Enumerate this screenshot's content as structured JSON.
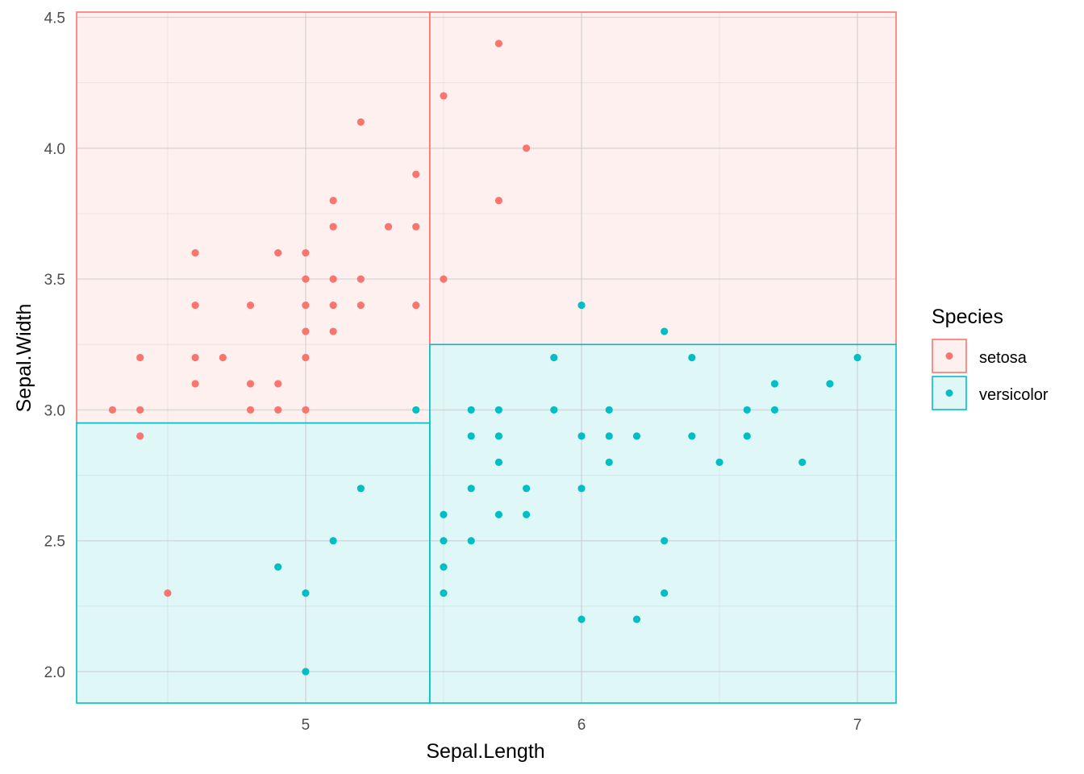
{
  "chart_data": {
    "type": "scatter",
    "title": "",
    "xlabel": "Sepal.Length",
    "ylabel": "Sepal.Width",
    "xlim": [
      4.17,
      7.14
    ],
    "ylim": [
      1.88,
      4.52
    ],
    "x_ticks": [
      5,
      6,
      7
    ],
    "x_tick_labels": [
      "5",
      "6",
      "7"
    ],
    "y_ticks": [
      2.0,
      2.5,
      3.0,
      3.5,
      4.0,
      4.5
    ],
    "y_tick_labels": [
      "2.0",
      "2.5",
      "3.0",
      "3.5",
      "4.0",
      "4.5"
    ],
    "grid": true,
    "legend": {
      "title": "Species",
      "position": "right",
      "entries": [
        "setosa",
        "versicolor"
      ]
    },
    "colors": {
      "setosa": "#F8766D",
      "versicolor": "#00BFC4"
    },
    "regions": [
      {
        "class": "setosa",
        "xmin": 4.17,
        "xmax": 5.45,
        "ymin": 2.95,
        "ymax": 4.52
      },
      {
        "class": "setosa",
        "xmin": 5.45,
        "xmax": 7.14,
        "ymin": 3.25,
        "ymax": 4.52
      },
      {
        "class": "versicolor",
        "xmin": 4.17,
        "xmax": 5.45,
        "ymin": 1.88,
        "ymax": 2.95
      },
      {
        "class": "versicolor",
        "xmin": 5.45,
        "xmax": 7.14,
        "ymin": 1.88,
        "ymax": 3.25
      }
    ],
    "series": [
      {
        "name": "setosa",
        "points": [
          [
            4.3,
            3.0
          ],
          [
            4.4,
            3.2
          ],
          [
            4.4,
            3.0
          ],
          [
            4.4,
            2.9
          ],
          [
            4.5,
            2.3
          ],
          [
            4.6,
            3.6
          ],
          [
            4.6,
            3.4
          ],
          [
            4.6,
            3.2
          ],
          [
            4.6,
            3.1
          ],
          [
            4.7,
            3.2
          ],
          [
            4.8,
            3.4
          ],
          [
            4.8,
            3.1
          ],
          [
            4.8,
            3.0
          ],
          [
            4.9,
            3.6
          ],
          [
            4.9,
            3.1
          ],
          [
            4.9,
            3.0
          ],
          [
            5.0,
            3.6
          ],
          [
            5.0,
            3.5
          ],
          [
            5.0,
            3.4
          ],
          [
            5.0,
            3.3
          ],
          [
            5.0,
            3.2
          ],
          [
            5.0,
            3.0
          ],
          [
            5.1,
            3.8
          ],
          [
            5.1,
            3.7
          ],
          [
            5.1,
            3.5
          ],
          [
            5.1,
            3.4
          ],
          [
            5.1,
            3.3
          ],
          [
            5.2,
            4.1
          ],
          [
            5.2,
            3.5
          ],
          [
            5.2,
            3.4
          ],
          [
            5.3,
            3.7
          ],
          [
            5.4,
            3.9
          ],
          [
            5.4,
            3.7
          ],
          [
            5.4,
            3.4
          ],
          [
            5.5,
            4.2
          ],
          [
            5.5,
            3.5
          ],
          [
            5.7,
            4.4
          ],
          [
            5.7,
            3.8
          ],
          [
            5.8,
            4.0
          ]
        ]
      },
      {
        "name": "versicolor",
        "points": [
          [
            4.9,
            2.4
          ],
          [
            5.0,
            2.3
          ],
          [
            5.0,
            2.0
          ],
          [
            5.1,
            2.5
          ],
          [
            5.2,
            2.7
          ],
          [
            5.4,
            3.0
          ],
          [
            5.5,
            2.6
          ],
          [
            5.5,
            2.5
          ],
          [
            5.5,
            2.4
          ],
          [
            5.5,
            2.3
          ],
          [
            5.6,
            3.0
          ],
          [
            5.6,
            2.9
          ],
          [
            5.6,
            2.7
          ],
          [
            5.6,
            2.5
          ],
          [
            5.7,
            3.0
          ],
          [
            5.7,
            2.9
          ],
          [
            5.7,
            2.8
          ],
          [
            5.7,
            2.6
          ],
          [
            5.8,
            2.7
          ],
          [
            5.8,
            2.6
          ],
          [
            5.9,
            3.2
          ],
          [
            5.9,
            3.0
          ],
          [
            6.0,
            3.4
          ],
          [
            6.0,
            2.9
          ],
          [
            6.0,
            2.7
          ],
          [
            6.0,
            2.2
          ],
          [
            6.1,
            3.0
          ],
          [
            6.1,
            2.9
          ],
          [
            6.1,
            2.8
          ],
          [
            6.2,
            2.9
          ],
          [
            6.2,
            2.2
          ],
          [
            6.3,
            3.3
          ],
          [
            6.3,
            2.5
          ],
          [
            6.3,
            2.3
          ],
          [
            6.4,
            3.2
          ],
          [
            6.4,
            2.9
          ],
          [
            6.5,
            2.8
          ],
          [
            6.6,
            3.0
          ],
          [
            6.6,
            2.9
          ],
          [
            6.7,
            3.1
          ],
          [
            6.7,
            3.0
          ],
          [
            6.8,
            2.8
          ],
          [
            6.9,
            3.1
          ],
          [
            7.0,
            3.2
          ]
        ]
      }
    ]
  }
}
